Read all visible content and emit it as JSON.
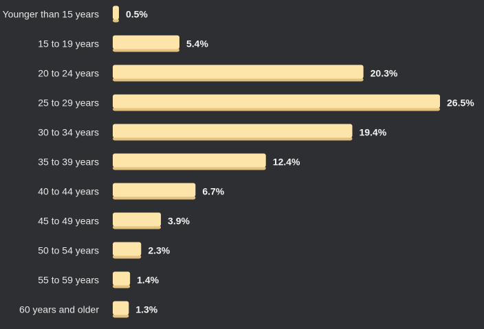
{
  "chart_data": {
    "type": "bar",
    "orientation": "horizontal",
    "categories": [
      "Younger than 15 years",
      "15 to 19 years",
      "20 to 24 years",
      "25 to 29 years",
      "30 to 34 years",
      "35 to 39 years",
      "40 to 44 years",
      "45 to 49 years",
      "50 to 54 years",
      "55 to 59 years",
      "60 years and older"
    ],
    "values": [
      0.5,
      5.4,
      20.3,
      26.5,
      19.4,
      12.4,
      6.7,
      3.9,
      2.3,
      1.4,
      1.3
    ],
    "value_labels": [
      "0.5%",
      "5.4%",
      "20.3%",
      "26.5%",
      "19.4%",
      "12.4%",
      "6.7%",
      "3.9%",
      "2.3%",
      "1.4%",
      "1.3%"
    ],
    "xlim": [
      0,
      26.5
    ],
    "grid": false,
    "legend": "none",
    "colors": {
      "background": "#2d2f33",
      "bar": "#fde4a8",
      "bar_shadow": "#e3c27f"
    }
  }
}
